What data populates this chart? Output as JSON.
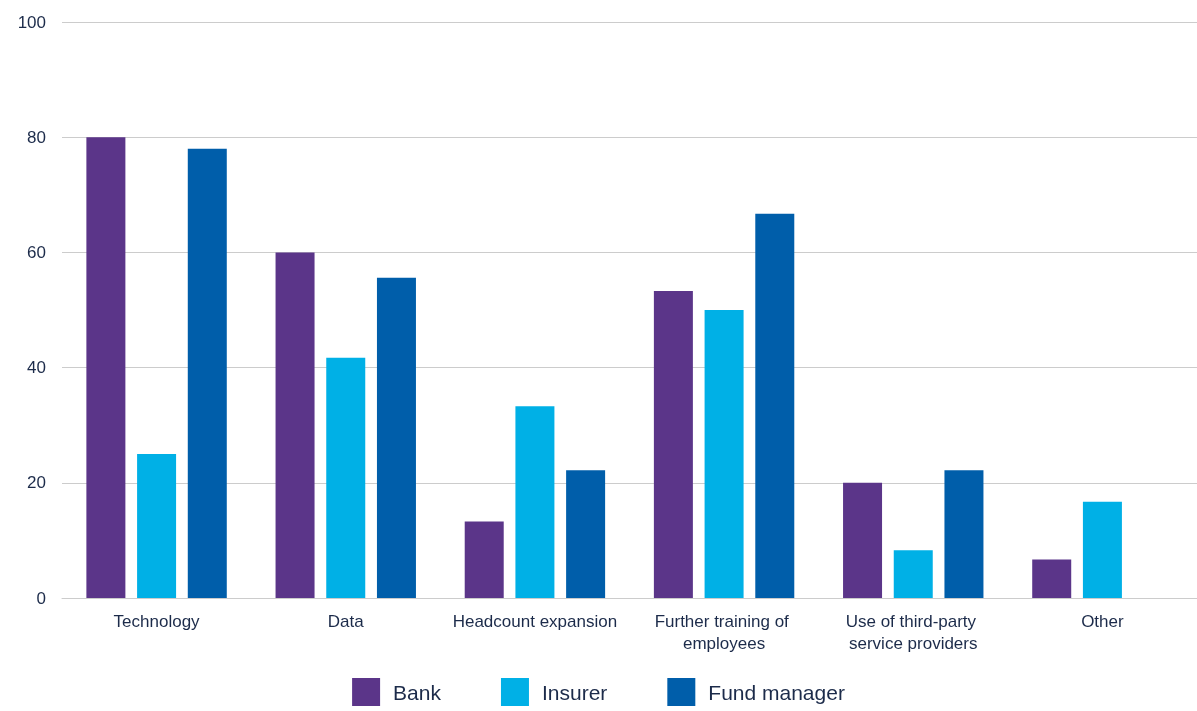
{
  "chart_data": {
    "type": "bar",
    "categories": [
      "Technology",
      "Data",
      "Headcount expansion",
      "Further training of employees",
      "Use of third-party service providers",
      "Other"
    ],
    "series": [
      {
        "name": "Bank",
        "color": "#5b3589",
        "values": [
          80,
          60,
          13.3,
          53.3,
          20,
          6.7
        ]
      },
      {
        "name": "Insurer",
        "color": "#00b0e6",
        "values": [
          25,
          41.7,
          33.3,
          50,
          8.3,
          16.7
        ]
      },
      {
        "name": "Fund manager",
        "color": "#005eaa",
        "values": [
          78,
          55.6,
          22.2,
          66.7,
          22.2,
          0
        ]
      }
    ],
    "ylim": [
      0,
      100
    ],
    "yticks": [
      0,
      20,
      40,
      60,
      80,
      100
    ],
    "grid": "y",
    "legend": "bottom"
  }
}
